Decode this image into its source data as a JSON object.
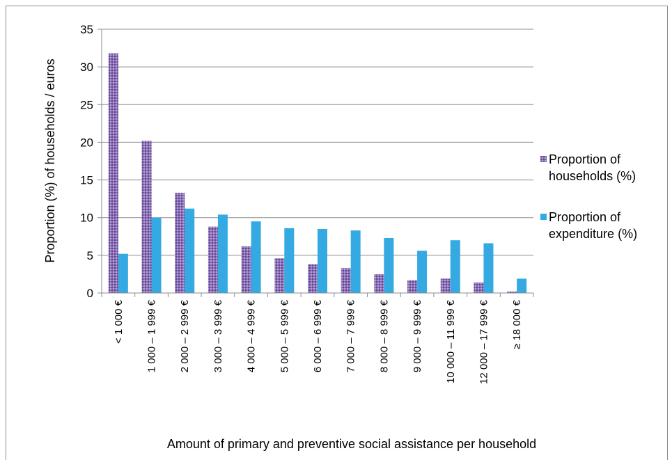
{
  "chart_data": {
    "type": "bar",
    "title": "",
    "xlabel": "Amount of primary and preventive social assistance per household",
    "ylabel": "Proportion  (%) of households / euros",
    "ylim": [
      0,
      35
    ],
    "yticks": [
      0,
      5,
      10,
      15,
      20,
      25,
      30,
      35
    ],
    "grid": true,
    "legend_position": "right",
    "categories": [
      "< 1 000 €",
      "1 000 – 1 999 €",
      "2 000 – 2 999 €",
      "3 000 – 3 999 €",
      "4 000 – 4 999 €",
      "5 000 – 5 999 €",
      "6 000 – 6 999 €",
      "7 000 – 7 999 €",
      "8 000 – 8 999 €",
      "9 000 – 9 999 €",
      "10 000 – 11 999 €",
      "12 000 – 17 999 €",
      "≥ 18 000 €"
    ],
    "series": [
      {
        "name": "Proportion of households (%)",
        "legend_lines": [
          "Proportion of",
          "households (%)"
        ],
        "color": "#7b5ea7",
        "pattern": "dotted-purple",
        "values": [
          31.8,
          20.2,
          13.3,
          8.8,
          6.2,
          4.6,
          3.8,
          3.3,
          2.5,
          1.7,
          1.9,
          1.4,
          0.2
        ]
      },
      {
        "name": "Proportion of expenditure (%)",
        "legend_lines": [
          "Proportion of",
          "expenditure (%)"
        ],
        "color": "#35a9e1",
        "values": [
          5.2,
          10.0,
          11.2,
          10.4,
          9.5,
          8.6,
          8.5,
          8.3,
          7.3,
          5.6,
          7.0,
          6.6,
          1.9
        ]
      }
    ]
  }
}
